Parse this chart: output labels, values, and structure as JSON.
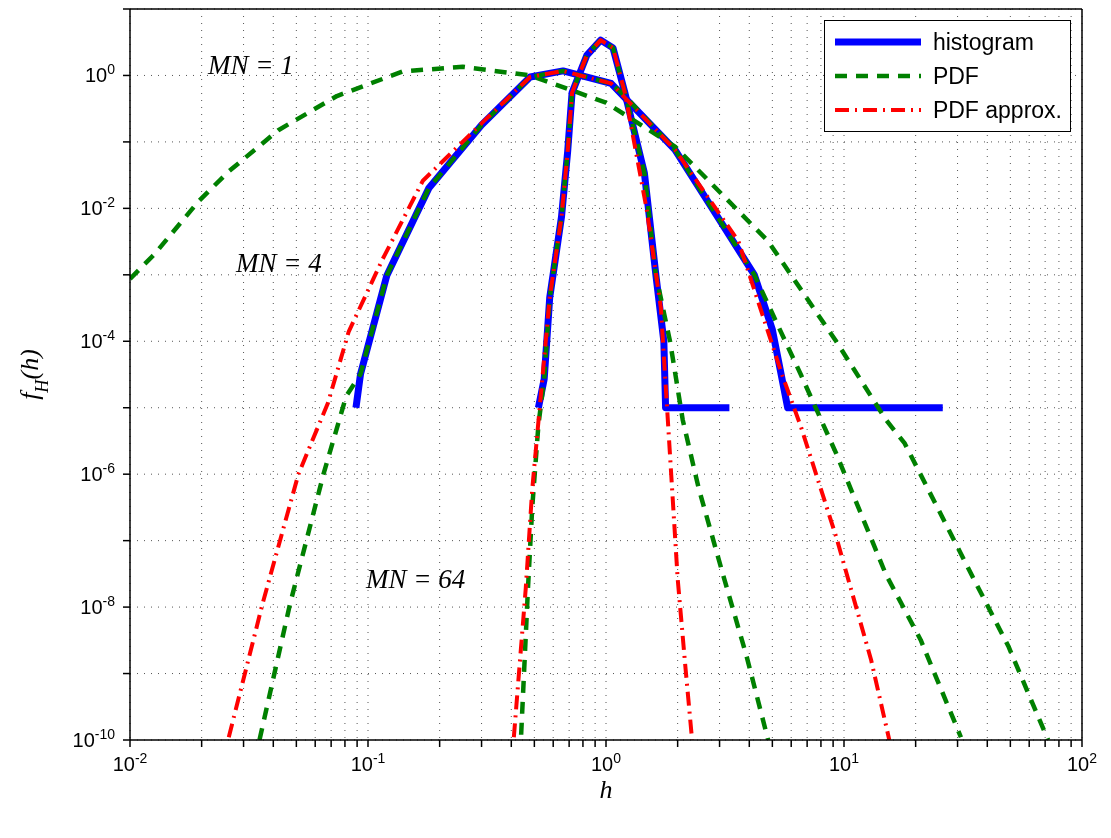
{
  "chart_data": {
    "type": "line",
    "xlabel": "h",
    "ylabel": "f$_{H}$(h)",
    "log": "xy",
    "grid": true,
    "legend": "top right",
    "xlim": [
      0.01,
      100
    ],
    "ylim": [
      1e-10,
      10
    ],
    "xticks": [
      {
        "value": 0.01,
        "label": "10$^{-2}$"
      },
      {
        "value": 0.02,
        "label": null
      },
      {
        "value": 0.03,
        "label": null
      },
      {
        "value": 0.04,
        "label": null
      },
      {
        "value": 0.05,
        "label": null
      },
      {
        "value": 0.06,
        "label": null
      },
      {
        "value": 0.07,
        "label": null
      },
      {
        "value": 0.08,
        "label": null
      },
      {
        "value": 0.09,
        "label": null
      },
      {
        "value": 0.1,
        "label": "10$^{-1}$"
      },
      {
        "value": 0.2,
        "label": null
      },
      {
        "value": 0.3,
        "label": null
      },
      {
        "value": 0.4,
        "label": null
      },
      {
        "value": 0.5,
        "label": null
      },
      {
        "value": 0.6,
        "label": null
      },
      {
        "value": 0.7,
        "label": null
      },
      {
        "value": 0.8,
        "label": null
      },
      {
        "value": 0.9,
        "label": null
      },
      {
        "value": 1,
        "label": "10$^{0}$"
      },
      {
        "value": 2,
        "label": null
      },
      {
        "value": 3,
        "label": null
      },
      {
        "value": 4,
        "label": null
      },
      {
        "value": 5,
        "label": null
      },
      {
        "value": 6,
        "label": null
      },
      {
        "value": 7,
        "label": null
      },
      {
        "value": 8,
        "label": null
      },
      {
        "value": 9,
        "label": null
      },
      {
        "value": 10,
        "label": "10$^{1}$"
      },
      {
        "value": 20,
        "label": null
      },
      {
        "value": 30,
        "label": null
      },
      {
        "value": 40,
        "label": null
      },
      {
        "value": 50,
        "label": null
      },
      {
        "value": 60,
        "label": null
      },
      {
        "value": 70,
        "label": null
      },
      {
        "value": 80,
        "label": null
      },
      {
        "value": 90,
        "label": null
      },
      {
        "value": 100,
        "label": "10$^{2}$"
      }
    ],
    "yticks": [
      {
        "value": 1e-10,
        "label": "10$^{-10}$"
      },
      {
        "value": 1e-09,
        "label": null
      },
      {
        "value": 1e-08,
        "label": "10$^{-8}$"
      },
      {
        "value": 1e-07,
        "label": null
      },
      {
        "value": 1e-06,
        "label": "10$^{-6}$"
      },
      {
        "value": 1e-05,
        "label": null
      },
      {
        "value": 0.0001,
        "label": "10$^{-4}$"
      },
      {
        "value": 0.001,
        "label": null
      },
      {
        "value": 0.01,
        "label": "10$^{-2}$"
      },
      {
        "value": 0.1,
        "label": null
      },
      {
        "value": 1,
        "label": "10$^{0}$"
      },
      {
        "value": 10,
        "label": null
      }
    ],
    "series": [
      {
        "name": "histogram",
        "color": "#0000ff",
        "line_style": "solid",
        "x": [
          0.089,
          0.093,
          0.12,
          0.18,
          0.3,
          0.48,
          0.66,
          1.05,
          1.95,
          2.9,
          4.2,
          5.0,
          5.8,
          26
        ],
        "values": [
          1e-05,
          3.2e-05,
          0.00098,
          0.02,
          0.18,
          0.95,
          1.17,
          0.76,
          0.076,
          0.0081,
          0.001,
          0.00015,
          1e-05,
          1e-05
        ]
      },
      {
        "color": "#0000ff",
        "line_style": "solid",
        "x": [
          0.52,
          0.55,
          0.58,
          0.65,
          0.69,
          0.72,
          0.83,
          0.95,
          1.07,
          1.2,
          1.45,
          1.62,
          1.75,
          1.78,
          3.3
        ],
        "values": [
          1e-05,
          2.7e-05,
          0.00045,
          0.0074,
          0.071,
          0.55,
          2.0,
          3.4,
          2.6,
          0.55,
          0.034,
          0.001,
          0.0001,
          1e-05,
          1e-05
        ]
      },
      {
        "name": "PDF",
        "color": "#008000",
        "line_style": "dashed",
        "x": [
          0.01,
          0.0126,
          0.0195,
          0.026,
          0.042,
          0.074,
          0.14,
          0.25,
          0.48,
          1.0,
          1.95,
          4.8,
          9.3,
          15,
          18,
          35,
          49,
          72
        ],
        "values": [
          0.00087,
          0.002,
          0.013,
          0.036,
          0.15,
          0.49,
          1.15,
          1.35,
          1.0,
          0.39,
          0.085,
          0.0032,
          9.8e-05,
          6.6e-06,
          2.9e-06,
          2.7e-08,
          2.6e-09,
          1e-10
        ]
      },
      {
        "color": "#008000",
        "line_style": "dashed",
        "x": [
          0.035,
          0.047,
          0.065,
          0.081,
          0.093,
          0.12,
          0.18,
          0.3,
          0.48,
          0.66,
          1.05,
          1.2,
          1.95,
          2.9,
          4.2,
          6.6,
          9.3,
          15,
          21,
          31
        ],
        "values": [
          1e-10,
          1.1e-08,
          1e-06,
          1.5e-05,
          3.2e-05,
          0.00098,
          0.02,
          0.18,
          0.95,
          1.17,
          0.76,
          0.49,
          0.076,
          0.0081,
          0.001,
          3.1e-05,
          2e-06,
          3.1e-08,
          3.2e-09,
          1.1e-10
        ]
      },
      {
        "color": "#008000",
        "line_style": "dashed",
        "x": [
          0.44,
          0.47,
          0.49,
          0.52,
          0.55,
          0.58,
          0.65,
          0.69,
          0.72,
          0.83,
          0.95,
          1.07,
          1.2,
          1.45,
          1.62,
          1.86,
          2.1,
          2.45,
          3.1,
          3.9,
          4.8
        ],
        "values": [
          1.2e-10,
          1.9e-08,
          3.2e-07,
          5.5e-06,
          2.7e-05,
          0.00045,
          0.0074,
          0.071,
          0.55,
          2.0,
          3.4,
          2.6,
          0.55,
          0.034,
          0.001,
          9.8e-05,
          6.6e-06,
          6.2e-07,
          3.1e-08,
          1.8e-09,
          1e-10
        ]
      },
      {
        "name": "PDF approx.",
        "color": "#ff0000",
        "line_style": "dashdot",
        "x": [
          0.026,
          0.036,
          0.051,
          0.068,
          0.083,
          0.115,
          0.17,
          0.3,
          0.48,
          0.66,
          1.05,
          1.95,
          3.6,
          5.5,
          6.6,
          9.3,
          13,
          15.5
        ],
        "values": [
          1.1e-10,
          1.1e-08,
          1e-06,
          1.2e-05,
          0.00014,
          0.0017,
          0.026,
          0.19,
          0.95,
          1.17,
          0.76,
          0.076,
          0.0032,
          3.1e-05,
          5.1e-06,
          1.1e-07,
          1.6e-09,
          1e-10
        ]
      },
      {
        "color": "#ff0000",
        "line_style": "dashdot",
        "x": [
          0.41,
          0.46,
          0.49,
          0.54,
          0.58,
          0.65,
          0.69,
          0.72,
          0.83,
          0.95,
          1.07,
          1.2,
          1.48,
          1.7,
          1.86,
          2.0,
          2.15,
          2.3
        ],
        "values": [
          1.1e-10,
          1.9e-08,
          6e-07,
          2.7e-05,
          0.00045,
          0.0074,
          0.071,
          0.55,
          2.0,
          3.4,
          2.6,
          0.55,
          0.01,
          0.00032,
          1.8e-06,
          2.7e-08,
          1.4e-09,
          1e-10
        ]
      }
    ],
    "annotations": [
      "MN = 1",
      "MN = 4",
      "MN = 64"
    ]
  }
}
